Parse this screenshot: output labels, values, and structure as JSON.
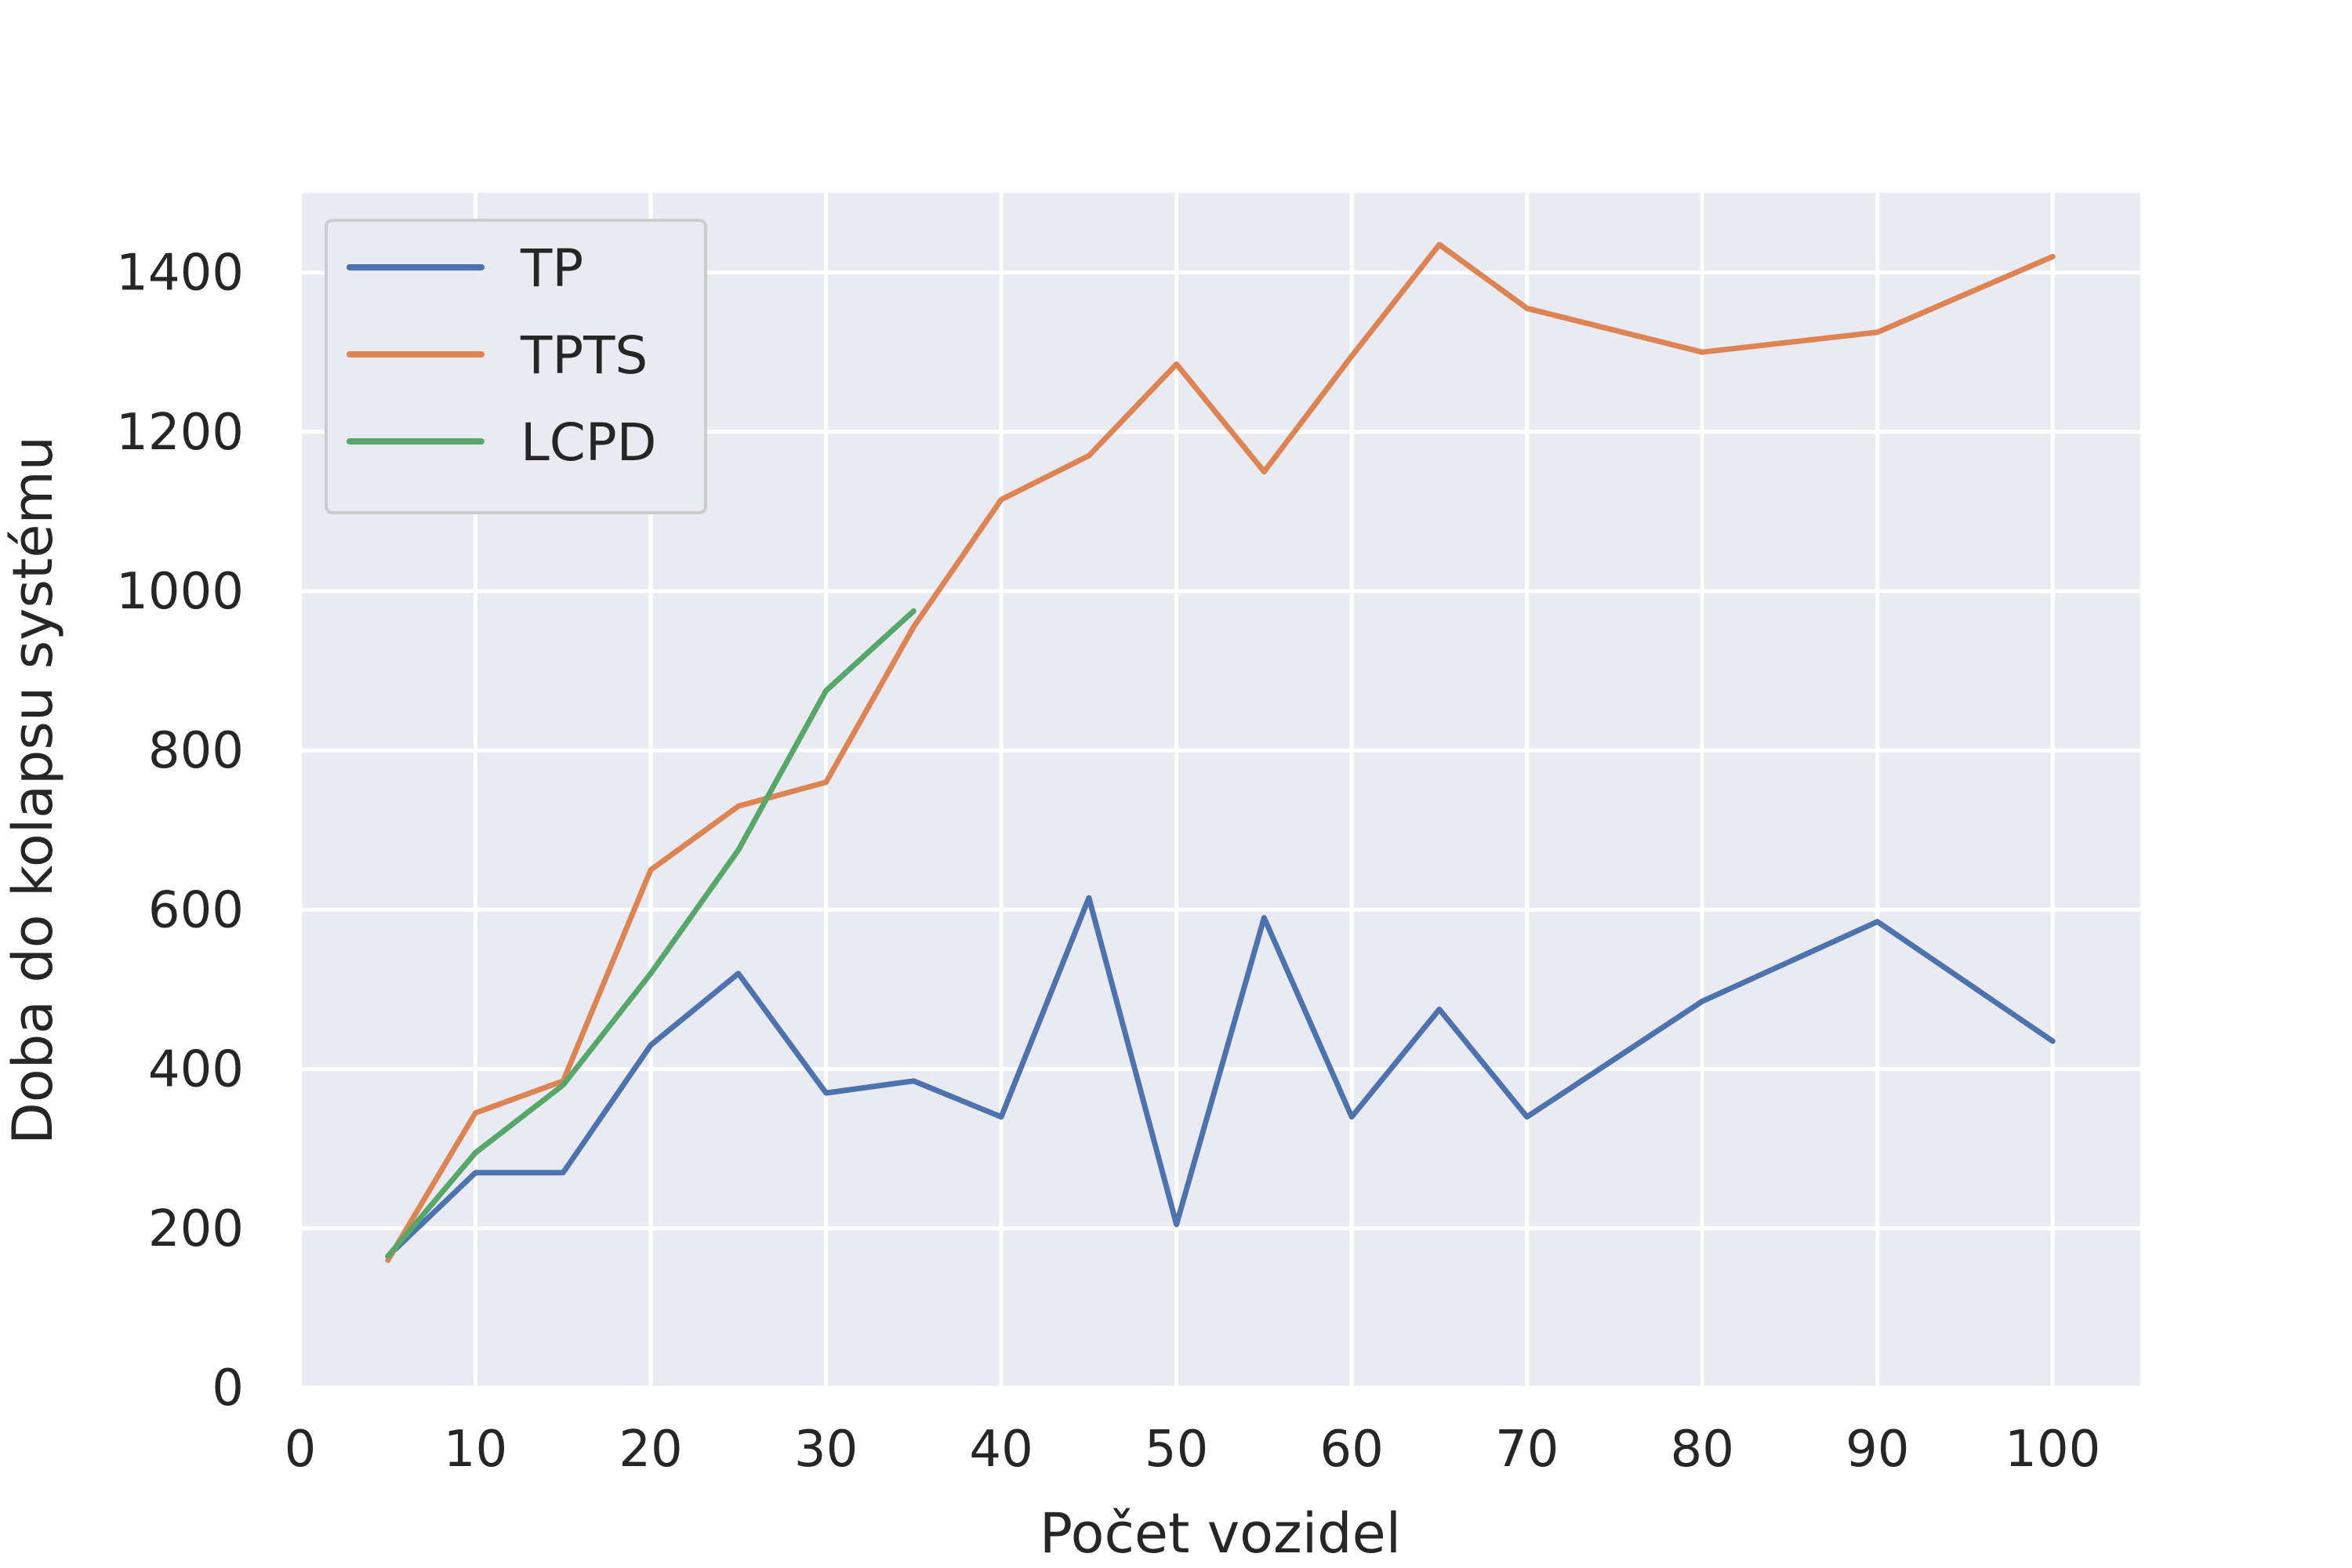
{
  "chart_data": {
    "type": "line",
    "title": "",
    "xlabel": "Počet vozidel",
    "ylabel": "Doba do kolapsu systému",
    "xlim": [
      0,
      105
    ],
    "ylim": [
      0,
      1500
    ],
    "xticks": [
      0,
      10,
      20,
      30,
      40,
      50,
      60,
      70,
      80,
      90,
      100
    ],
    "yticks": [
      0,
      200,
      400,
      600,
      800,
      1000,
      1200,
      1400
    ],
    "grid": true,
    "legend_position": "top-left",
    "series": [
      {
        "name": "TP",
        "color": "#4c72b0",
        "x": [
          5,
          10,
          15,
          20,
          25,
          30,
          35,
          40,
          45,
          50,
          55,
          60,
          65,
          70,
          80,
          90,
          100
        ],
        "y": [
          165,
          270,
          270,
          430,
          520,
          370,
          385,
          340,
          615,
          205,
          590,
          340,
          475,
          340,
          485,
          585,
          435
        ]
      },
      {
        "name": "TPTS",
        "color": "#dd8452",
        "x": [
          5,
          10,
          15,
          20,
          25,
          30,
          35,
          40,
          45,
          50,
          55,
          60,
          65,
          70,
          80,
          90,
          100
        ],
        "y": [
          160,
          345,
          385,
          650,
          730,
          760,
          955,
          1115,
          1170,
          1285,
          1150,
          1295,
          1435,
          1355,
          1300,
          1325,
          1420
        ]
      },
      {
        "name": "LCPD",
        "color": "#55a868",
        "x": [
          5,
          10,
          15,
          20,
          25,
          30,
          35
        ],
        "y": [
          165,
          295,
          380,
          520,
          675,
          875,
          975
        ]
      }
    ]
  }
}
